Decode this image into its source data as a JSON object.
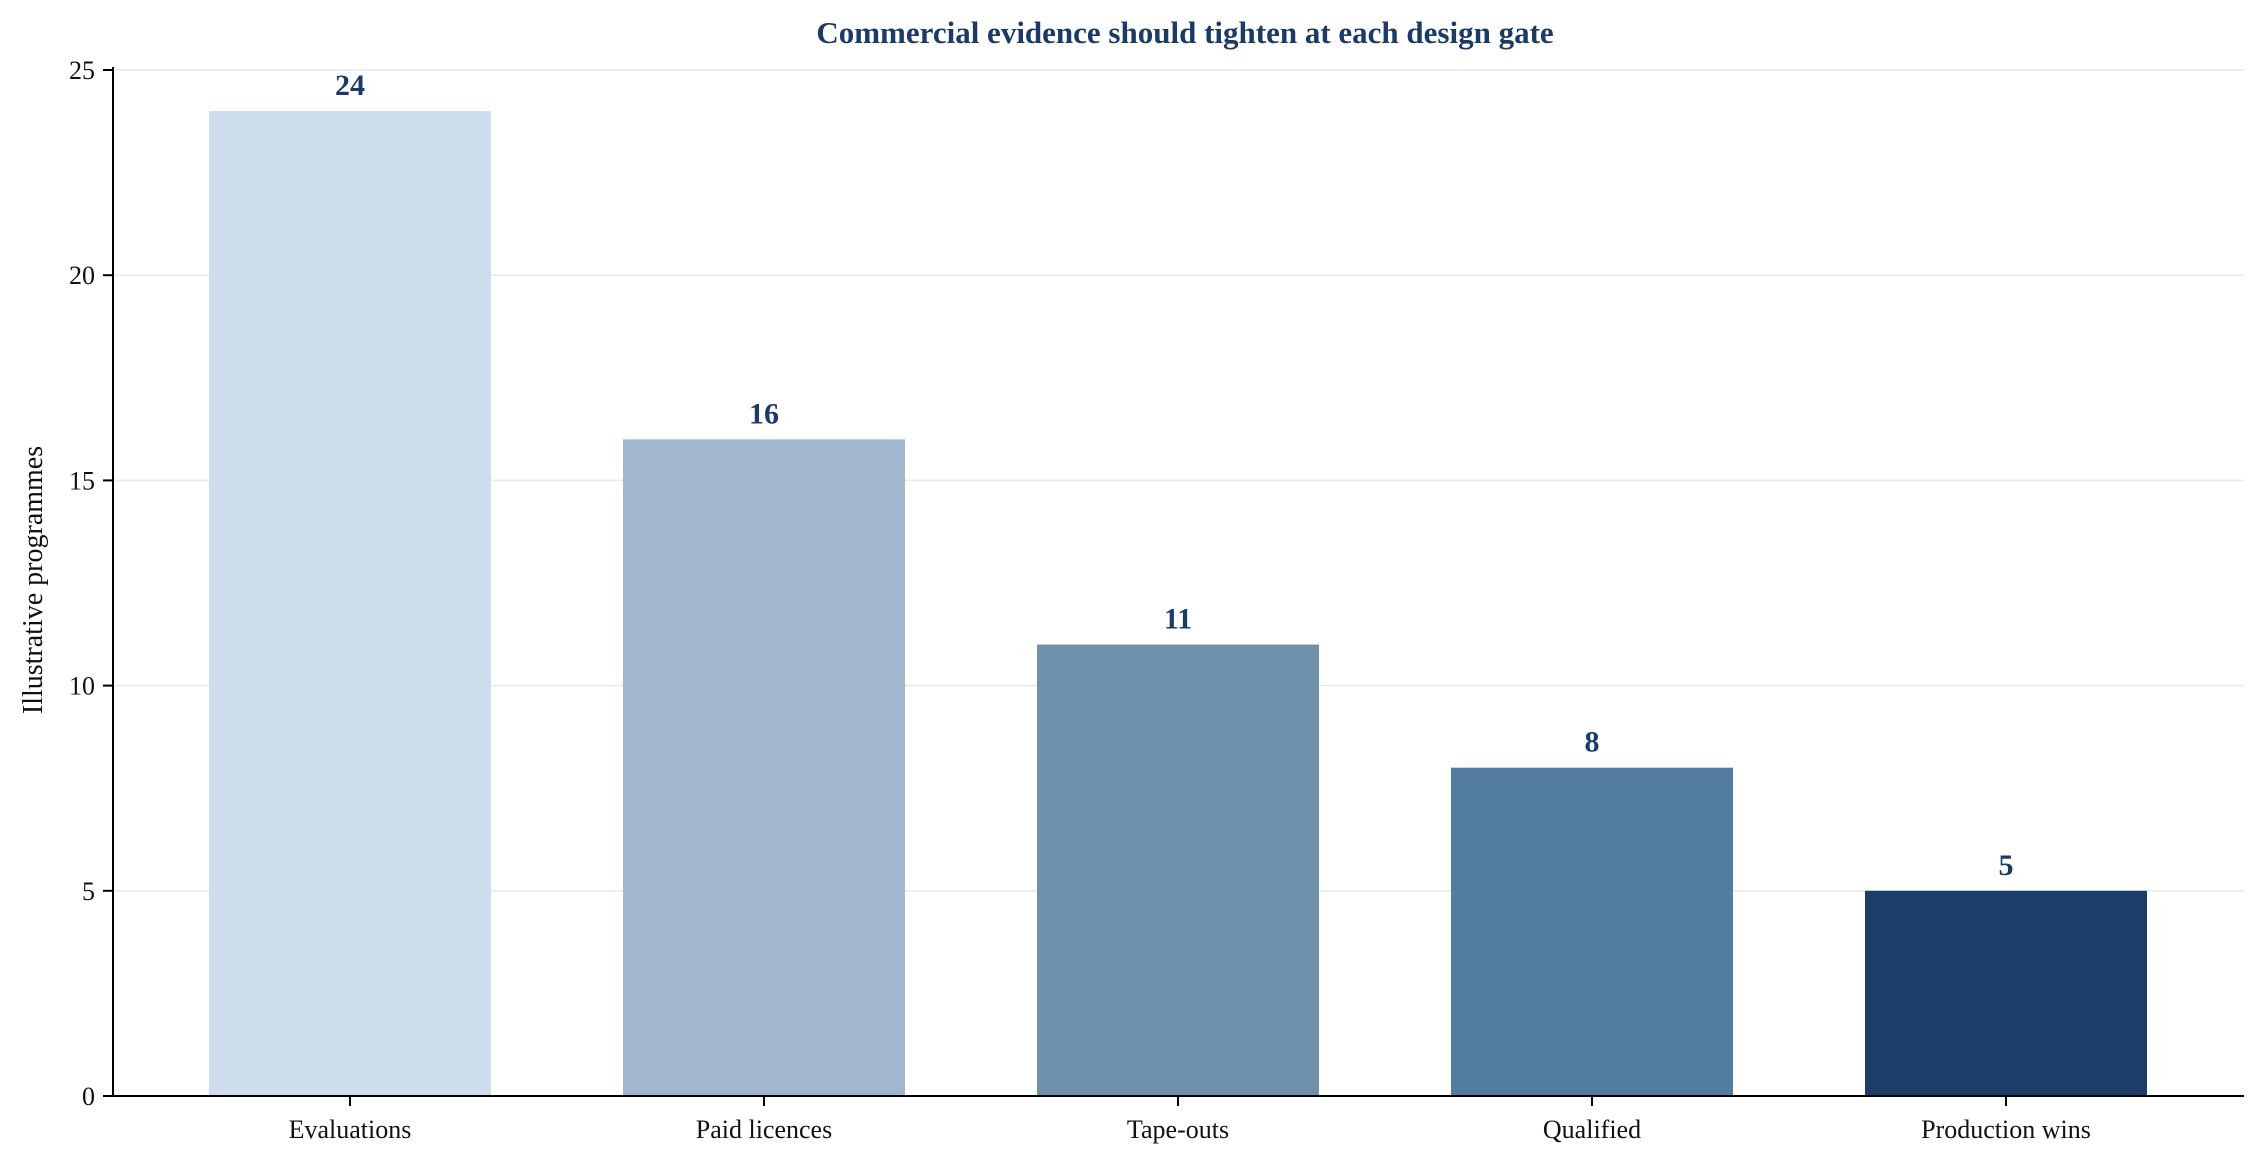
{
  "chart_data": {
    "type": "bar",
    "title": "Commercial evidence should tighten at each design gate",
    "xlabel": "",
    "ylabel": "Illustrative programmes",
    "categories": [
      "Evaluations",
      "Paid licences",
      "Tape-outs",
      "Qualified",
      "Production wins"
    ],
    "values": [
      24,
      16,
      11,
      8,
      5
    ],
    "colors": [
      "#cedded",
      "#a1b6cf",
      "#6f91ac",
      "#527ba0",
      "#1b3d68"
    ],
    "ylim": [
      0,
      25
    ],
    "yticks": [
      0,
      5,
      10,
      15,
      20,
      25
    ],
    "grid": true,
    "legend": "none"
  }
}
